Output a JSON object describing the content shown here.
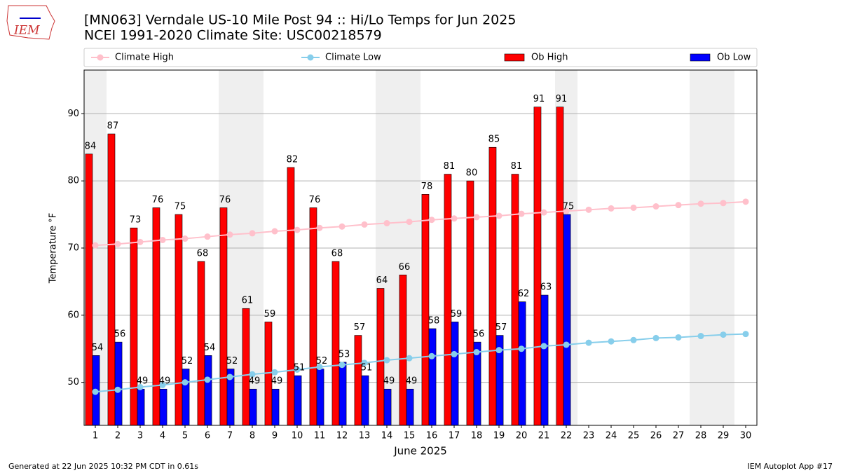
{
  "logo": "IEM",
  "footer_left": "Generated at 22 Jun 2025 10:32 PM CDT in 0.61s",
  "footer_right": "IEM Autoplot App #17",
  "chart_data": {
    "type": "bar",
    "title": "[MN063] Verndale US-10 Mile Post 94 :: Hi/Lo Temps for Jun 2025",
    "subtitle": "NCEI 1991-2020 Climate Site: USC00218579",
    "x_label": "June 2025",
    "y_label": "Temperature °F",
    "x": [
      1,
      2,
      3,
      4,
      5,
      6,
      7,
      8,
      9,
      10,
      11,
      12,
      13,
      14,
      15,
      16,
      17,
      18,
      19,
      20,
      21,
      22,
      23,
      24,
      25,
      26,
      27,
      28,
      29,
      30
    ],
    "xlim": [
      0.5,
      30.5
    ],
    "xticks": [
      1,
      2,
      3,
      4,
      5,
      6,
      7,
      8,
      9,
      10,
      11,
      12,
      13,
      14,
      15,
      16,
      17,
      18,
      19,
      20,
      21,
      22,
      23,
      24,
      25,
      26,
      27,
      28,
      29,
      30
    ],
    "ylim": [
      43.6,
      96.5
    ],
    "yticks": [
      50,
      60,
      70,
      80,
      90
    ],
    "grid": true,
    "highlight_days": [
      1,
      7,
      8,
      14,
      15,
      22,
      28,
      29
    ],
    "series": [
      {
        "name": "Climate High",
        "type": "line",
        "color": "#ffc0cb",
        "values": [
          70.4,
          70.6,
          70.9,
          71.2,
          71.4,
          71.7,
          72.0,
          72.2,
          72.5,
          72.7,
          73.0,
          73.2,
          73.5,
          73.7,
          73.9,
          74.2,
          74.4,
          74.6,
          74.8,
          75.1,
          75.3,
          75.5,
          75.7,
          75.9,
          76.0,
          76.2,
          76.4,
          76.6,
          76.7,
          76.9
        ]
      },
      {
        "name": "Climate Low",
        "type": "line",
        "color": "#87ceeb",
        "values": [
          48.6,
          48.9,
          49.3,
          49.6,
          50.0,
          50.4,
          50.8,
          51.2,
          51.5,
          51.9,
          52.3,
          52.6,
          52.9,
          53.3,
          53.6,
          53.9,
          54.2,
          54.5,
          54.8,
          55.0,
          55.4,
          55.6,
          55.9,
          56.1,
          56.3,
          56.6,
          56.7,
          56.9,
          57.1,
          57.2
        ]
      },
      {
        "name": "Ob High",
        "type": "bar",
        "color": "#ff0000",
        "values": [
          84,
          87,
          73,
          76,
          75,
          68,
          76,
          61,
          59,
          82,
          76,
          68,
          57,
          64,
          66,
          78,
          81,
          80,
          85,
          81,
          91,
          91,
          null,
          null,
          null,
          null,
          null,
          null,
          null,
          null
        ]
      },
      {
        "name": "Ob Low",
        "type": "bar",
        "color": "#0000ff",
        "values": [
          54,
          56,
          49,
          49,
          52,
          54,
          52,
          49,
          49,
          51,
          52,
          53,
          51,
          49,
          49,
          58,
          59,
          56,
          57,
          62,
          63,
          75,
          null,
          null,
          null,
          null,
          null,
          null,
          null,
          null
        ]
      }
    ]
  }
}
